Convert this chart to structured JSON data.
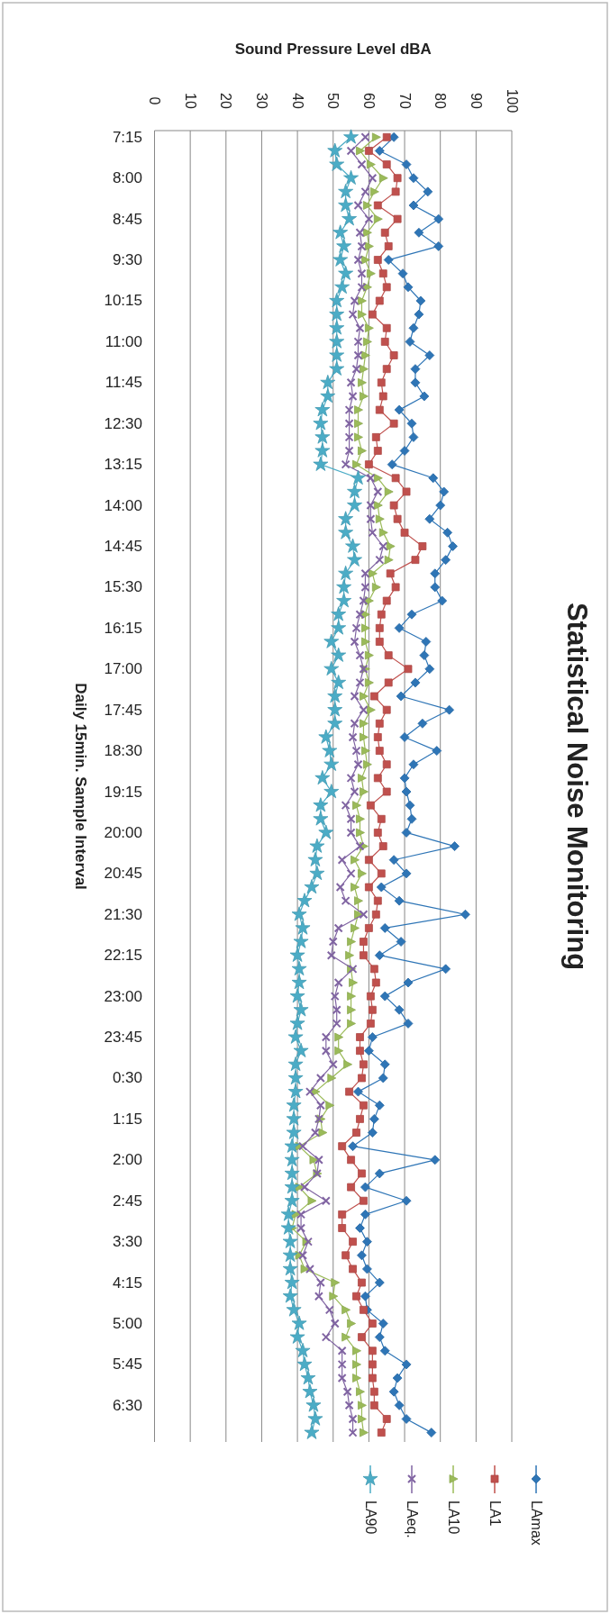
{
  "chart_data": {
    "type": "line",
    "orientation": "horizontal",
    "title": "Statistical Noise Monitoring",
    "xlabel": "Sound Pressure Level dBA",
    "ylabel": "Daily 15min. Sample Interval",
    "categories": [
      "7:15",
      null,
      null,
      "8:00",
      null,
      null,
      "8:45",
      null,
      null,
      "9:30",
      null,
      null,
      "10:15",
      null,
      null,
      "11:00",
      null,
      null,
      "11:45",
      null,
      null,
      "12:30",
      null,
      null,
      "13:15",
      null,
      null,
      "14:00",
      null,
      null,
      "14:45",
      null,
      null,
      "15:30",
      null,
      null,
      "16:15",
      null,
      null,
      "17:00",
      null,
      null,
      "17:45",
      null,
      null,
      "18:30",
      null,
      null,
      "19:15",
      null,
      null,
      "20:00",
      null,
      null,
      "20:45",
      null,
      null,
      "21:30",
      null,
      null,
      "22:15",
      null,
      null,
      "23:00",
      null,
      null,
      "23:45",
      null,
      null,
      "0:30",
      null,
      null,
      "1:15",
      null,
      null,
      "2:00",
      null,
      null,
      "2:45",
      null,
      null,
      "3:30",
      null,
      null,
      "4:15",
      null,
      null,
      "5:00",
      null,
      null,
      "5:45",
      null,
      null,
      "6:30",
      null,
      null
    ],
    "xlim": [
      0,
      100
    ],
    "xticks": [
      0,
      10,
      20,
      30,
      40,
      50,
      60,
      70,
      80,
      90,
      100
    ],
    "grid": "x",
    "legend": "bottom",
    "series": [
      {
        "name": "LAmax",
        "color": "#2e75b6",
        "marker": "diamond",
        "values": [
          67,
          63,
          70.5,
          72.5,
          76.5,
          72.5,
          79.5,
          74,
          79.5,
          65.5,
          69.5,
          71,
          74.5,
          74,
          72.5,
          71.5,
          77,
          73,
          73,
          75.5,
          68.5,
          72,
          72.5,
          70,
          66.5,
          78,
          81,
          80,
          77,
          82,
          83.5,
          81.5,
          78.5,
          78.5,
          80.5,
          72,
          68.5,
          76,
          75.5,
          77,
          73,
          69,
          82.5,
          75,
          70,
          79,
          72.5,
          70,
          70.5,
          71.5,
          72,
          70.5,
          84,
          67,
          70.5,
          63.5,
          68.5,
          87,
          64.5,
          69,
          63,
          81.5,
          71,
          64.5,
          68.5,
          71,
          61,
          60,
          64.5,
          64,
          57,
          63,
          61.5,
          61,
          55.5,
          78.5,
          63,
          59,
          70.5,
          59,
          57.5,
          59.5,
          58,
          59.5,
          63,
          59,
          59.5,
          64,
          63,
          64.5,
          70.5,
          68,
          67,
          68.5,
          70.5,
          77.5
        ]
      },
      {
        "name": "LA1",
        "color": "#c0504d",
        "marker": "square",
        "values": [
          65,
          60,
          65,
          68,
          67.5,
          62.5,
          68,
          64.5,
          65.5,
          62.5,
          64,
          65,
          63,
          61,
          65,
          64.5,
          67,
          65,
          63.5,
          64,
          63,
          67,
          62,
          62.5,
          60,
          67.5,
          70.5,
          67,
          68,
          70,
          75,
          73,
          66,
          67.5,
          65,
          63.5,
          63,
          63,
          65.5,
          71,
          65.5,
          61.5,
          65,
          63,
          62.5,
          63,
          65,
          62.5,
          65,
          60.5,
          63.5,
          62.5,
          64,
          60,
          63.5,
          60,
          62.5,
          62,
          60,
          58.5,
          58.5,
          61.5,
          62,
          60.5,
          61,
          60.5,
          57.5,
          57.5,
          58.5,
          58,
          54.5,
          58.5,
          57.5,
          56.5,
          52.5,
          55,
          58,
          55,
          58.5,
          52.5,
          52.5,
          55.5,
          53.5,
          55.5,
          58,
          56.5,
          58.5,
          61,
          58,
          61,
          61,
          61,
          61.5,
          61.5,
          65,
          63.5
        ]
      },
      {
        "name": "LA10",
        "color": "#9bbb59",
        "marker": "triangle",
        "values": [
          62,
          57.5,
          60.5,
          64,
          61.5,
          59.5,
          62.5,
          59.5,
          60,
          59,
          60.5,
          59.5,
          58,
          58,
          60,
          59.5,
          59,
          58.5,
          58,
          58.5,
          57,
          57,
          57,
          58,
          56.5,
          62.5,
          65.5,
          62.5,
          63,
          64,
          66,
          65.5,
          61,
          62,
          60,
          59,
          59,
          59,
          60,
          59,
          60,
          58.5,
          60.5,
          58.5,
          58.5,
          59,
          59.5,
          58,
          58.5,
          56.5,
          57.5,
          57.5,
          58.5,
          56,
          58,
          56,
          57,
          57,
          56,
          55,
          54.5,
          55,
          55.5,
          55,
          55,
          55,
          51.5,
          51.5,
          54,
          49.5,
          45,
          49,
          46.5,
          47,
          40.5,
          44.5,
          45.5,
          40.5,
          44,
          39.5,
          38.5,
          42.5,
          40.5,
          42,
          50.5,
          50,
          53.5,
          55,
          53.5,
          56.5,
          56.5,
          56.5,
          57.5,
          58,
          58,
          58.5
        ]
      },
      {
        "name": "LAeq.",
        "color": "#8064a2",
        "marker": "cross",
        "values": [
          59,
          55,
          58,
          61,
          59,
          57,
          60,
          57.5,
          58,
          57,
          58,
          58,
          56,
          55.5,
          57.5,
          57,
          57,
          56.5,
          55,
          55.5,
          54.5,
          54.5,
          54.5,
          54.5,
          53.5,
          60.5,
          62.5,
          60.5,
          60.5,
          61,
          64,
          63,
          59,
          59,
          58.5,
          57.5,
          56.5,
          56,
          57.5,
          58.5,
          57.5,
          56,
          58.5,
          56,
          55.5,
          56.5,
          57,
          55,
          56,
          53.5,
          55,
          55,
          57.5,
          52.5,
          55,
          52,
          53.5,
          58.5,
          51.5,
          50,
          49.5,
          55.5,
          51.5,
          50.5,
          51,
          51,
          48,
          48,
          50,
          46.5,
          43.5,
          46.5,
          46,
          45,
          41.5,
          46,
          45.5,
          42,
          48,
          41,
          41,
          43,
          41.5,
          43.5,
          46.5,
          46,
          49,
          50.5,
          48,
          52.5,
          52.5,
          52.5,
          54,
          54.5,
          55.5,
          55.5
        ]
      },
      {
        "name": "LA90",
        "color": "#4bacc6",
        "marker": "star",
        "values": [
          55,
          50.5,
          51,
          55,
          53.5,
          53.5,
          54.5,
          52,
          53,
          52,
          53.5,
          52.5,
          51,
          51,
          51,
          51,
          51,
          51,
          48.5,
          48.5,
          47,
          46.5,
          47,
          47,
          46.5,
          57,
          56,
          56,
          53.5,
          53.5,
          55.5,
          56,
          53.5,
          53,
          53,
          51.5,
          51.5,
          49.5,
          51.5,
          49.5,
          51.5,
          50.5,
          50.5,
          50.5,
          48,
          49,
          49.5,
          47,
          49.5,
          46.5,
          46.5,
          48,
          45.5,
          45,
          45.5,
          44,
          42,
          40.5,
          41.5,
          41,
          40,
          40.5,
          40.5,
          40,
          41,
          40,
          39.5,
          41,
          39.5,
          39.5,
          39.5,
          39,
          39,
          39,
          38.5,
          38.5,
          38.5,
          38.5,
          38.5,
          37.5,
          37.5,
          38,
          38,
          38,
          38.5,
          38,
          39,
          40.5,
          40,
          41.5,
          42,
          43,
          43.5,
          44.5,
          45,
          44
        ]
      }
    ]
  }
}
